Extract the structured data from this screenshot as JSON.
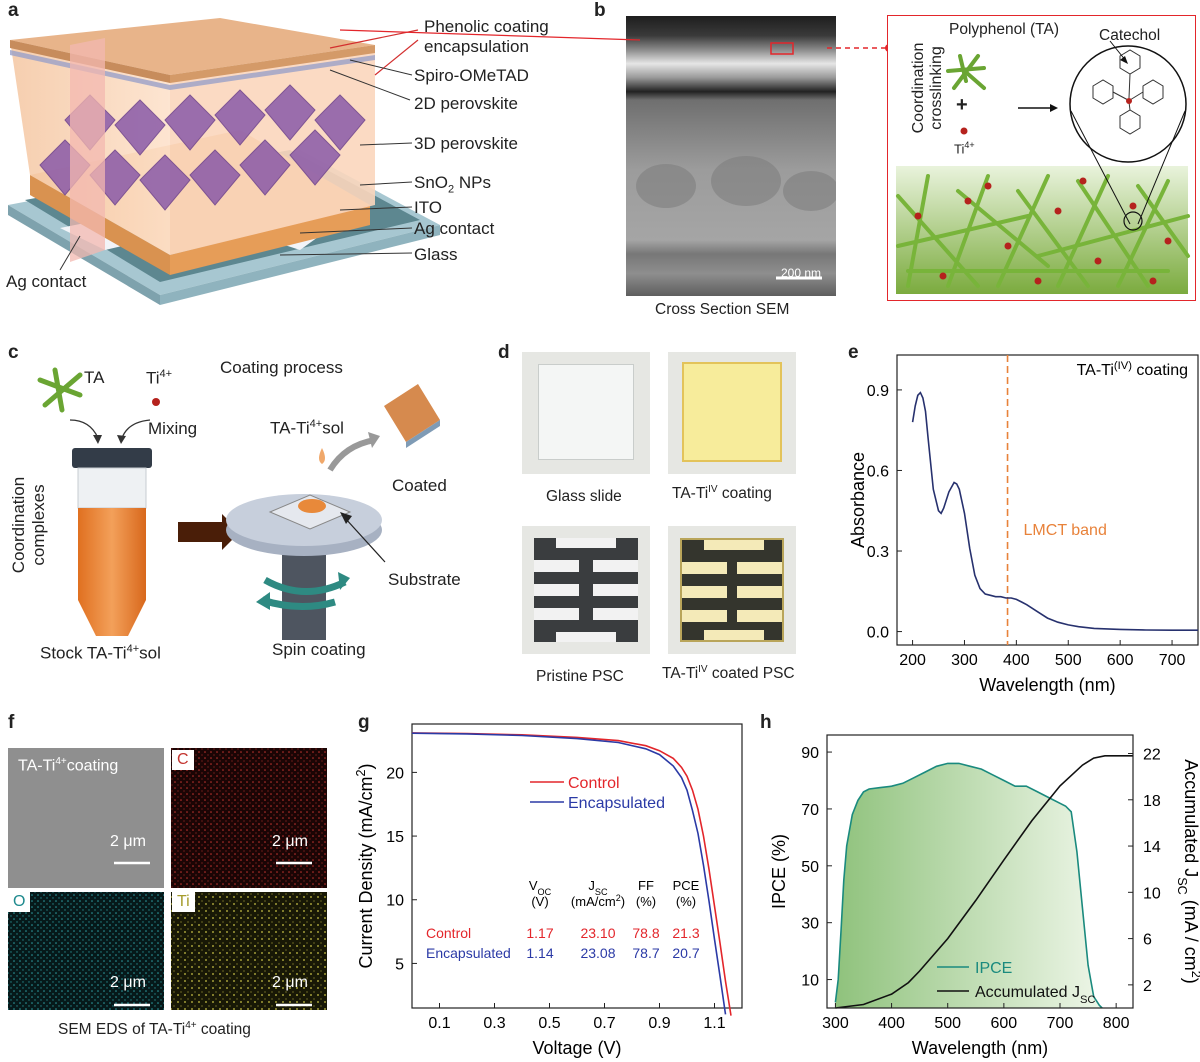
{
  "panels": {
    "a": {
      "label": "a",
      "layers": [
        "Phenolic coating",
        "encapsulation",
        "Spiro-OMeTAD",
        "2D perovskite",
        "3D perovskite",
        "SnO",
        "2",
        " NPs",
        "ITO",
        "Ag contact",
        "Glass"
      ],
      "left_contact": "Ag contact"
    },
    "b": {
      "label": "b",
      "sem_caption": "Cross Section SEM",
      "scale_bar": "200 nm",
      "crosslinking_label": [
        "Coordination",
        "crosslinking"
      ],
      "polyphenol": "Polyphenol (TA)",
      "catechol": "Catechol",
      "plus": "+",
      "ti": "Ti",
      "ti_sup": "4+"
    },
    "c": {
      "label": "c",
      "ta": "TA",
      "ti": "Ti",
      "ti_sup": "4+",
      "mixing": "Mixing",
      "coating_process": "Coating process",
      "sol_prefix": "TA-Ti",
      "sol_sup": "4+",
      "sol_suffix": "sol",
      "coated": "Coated",
      "substrate": "Substrate",
      "vertical": [
        "Coordination",
        "complexes"
      ],
      "stock_prefix": "Stock TA-Ti",
      "stock_sup": "4+",
      "stock_suffix": "sol",
      "spin": "Spin coating"
    },
    "d": {
      "label": "d",
      "glass": "Glass slide",
      "coating_prefix": "TA-Ti",
      "coating_sup": "IV",
      "coating_suffix": " coating",
      "pristine": "Pristine PSC",
      "coated_prefix": "TA-Ti",
      "coated_sup": "IV",
      "coated_suffix": " coated PSC"
    },
    "f": {
      "label": "f",
      "tile1_prefix": "TA-Ti",
      "tile1_sup": "4+",
      "tile1_suffix": "coating",
      "c": "C",
      "o": "O",
      "ti": "Ti",
      "scale": "2 μm",
      "caption_prefix": "SEM EDS of TA-Ti",
      "caption_sup": "4+",
      "caption_suffix": " coating"
    }
  },
  "chart_data": [
    {
      "panel": "e",
      "type": "line",
      "xlabel": "Wavelength (nm)",
      "ylabel": "Absorbance",
      "xlim": [
        170,
        750
      ],
      "ylim": [
        -0.05,
        1.03
      ],
      "xticks": [
        200,
        300,
        400,
        500,
        600,
        700
      ],
      "yticks": [
        0.0,
        0.3,
        0.6,
        0.9
      ],
      "ytick_labels": [
        "0.0",
        "0.3",
        "0.6",
        "0.9"
      ],
      "annotation_prefix": "TA-Ti",
      "annotation_sup": "(IV)",
      "annotation_suffix": " coating",
      "band_label": "LMCT band",
      "band_x": 383,
      "x": [
        200,
        205,
        210,
        215,
        220,
        225,
        230,
        240,
        250,
        255,
        260,
        270,
        280,
        285,
        290,
        300,
        310,
        320,
        330,
        340,
        350,
        360,
        370,
        380,
        390,
        400,
        410,
        420,
        440,
        460,
        480,
        500,
        520,
        550,
        600,
        650,
        700,
        750
      ],
      "y": [
        0.78,
        0.84,
        0.88,
        0.89,
        0.87,
        0.82,
        0.72,
        0.53,
        0.45,
        0.44,
        0.46,
        0.52,
        0.555,
        0.55,
        0.53,
        0.44,
        0.31,
        0.21,
        0.16,
        0.14,
        0.135,
        0.13,
        0.13,
        0.125,
        0.125,
        0.12,
        0.11,
        0.1,
        0.075,
        0.05,
        0.035,
        0.025,
        0.018,
        0.012,
        0.008,
        0.006,
        0.005,
        0.005
      ]
    },
    {
      "panel": "g",
      "type": "line",
      "xlabel": "Voltage (V)",
      "ylabel_prefix": "Current Density (mA/cm",
      "ylabel_sup": "2",
      "ylabel_suffix": ")",
      "xlim": [
        0,
        1.2
      ],
      "ylim": [
        1.5,
        23.8
      ],
      "xticks": [
        0.1,
        0.3,
        0.5,
        0.7,
        0.9,
        1.1
      ],
      "yticks": [
        5,
        10,
        15,
        20
      ],
      "series": [
        {
          "name": "Control",
          "color": "#e3262b",
          "x": [
            0,
            0.2,
            0.4,
            0.6,
            0.75,
            0.85,
            0.9,
            0.95,
            0.98,
            1.0,
            1.02,
            1.04,
            1.06,
            1.08,
            1.1,
            1.12,
            1.14,
            1.16
          ],
          "y": [
            23.1,
            23.05,
            22.95,
            22.75,
            22.5,
            22.1,
            21.7,
            21.1,
            20.4,
            19.7,
            18.6,
            17.1,
            15.0,
            12.4,
            9.5,
            6.6,
            3.6,
            0.9
          ]
        },
        {
          "name": "Encapsulated",
          "color": "#2b3aa6",
          "x": [
            0,
            0.2,
            0.4,
            0.6,
            0.75,
            0.85,
            0.9,
            0.95,
            0.98,
            1.0,
            1.02,
            1.04,
            1.06,
            1.08,
            1.1,
            1.12,
            1.14
          ],
          "y": [
            23.08,
            23.02,
            22.9,
            22.65,
            22.35,
            21.85,
            21.4,
            20.5,
            19.6,
            18.6,
            17.0,
            15.2,
            12.7,
            9.9,
            6.9,
            4.0,
            1.0
          ]
        }
      ],
      "table": {
        "headers": [
          [
            "V",
            "OC",
            "(V)"
          ],
          [
            "J",
            "SC",
            "(mA/cm",
            "2",
            ")"
          ],
          [
            "FF",
            "(%)"
          ],
          [
            "PCE",
            "(%)"
          ]
        ],
        "rows": [
          {
            "name": "Control",
            "voc": "1.17",
            "jsc": "23.10",
            "ff": "78.8",
            "pce": "21.3"
          },
          {
            "name": "Encapsulated",
            "voc": "1.14",
            "jsc": "23.08",
            "ff": "78.7",
            "pce": "20.7"
          }
        ]
      }
    },
    {
      "panel": "h",
      "type": "area",
      "xlabel": "Wavelength (nm)",
      "ylabel_left": "IPCE (%)",
      "ylabel_right_prefix": "Accumulated J",
      "ylabel_right_sub": "SC",
      "ylabel_right_suffix_a": " (mA / cm",
      "ylabel_right_sup": "2",
      "ylabel_right_suffix_b": ")",
      "xlim": [
        285,
        830
      ],
      "ylim_left": [
        0,
        96
      ],
      "ylim_right": [
        0,
        23.6
      ],
      "xticks": [
        300,
        400,
        500,
        600,
        700,
        800
      ],
      "yticks_left": [
        10,
        30,
        50,
        70,
        90
      ],
      "yticks_right": [
        2,
        6,
        10,
        14,
        18,
        22
      ],
      "series": [
        {
          "name": "IPCE",
          "color": "#1a8a7e",
          "x": [
            300,
            305,
            310,
            315,
            320,
            330,
            340,
            350,
            360,
            380,
            400,
            420,
            440,
            460,
            480,
            500,
            520,
            540,
            560,
            580,
            600,
            620,
            640,
            660,
            680,
            700,
            710,
            720,
            730,
            740,
            750,
            760,
            770,
            775
          ],
          "y": [
            2,
            10,
            27,
            45,
            57,
            68,
            73,
            76,
            77,
            77.5,
            78,
            79,
            81,
            83,
            85,
            86,
            86,
            85,
            84,
            82,
            80,
            78,
            78,
            76,
            74,
            72,
            71,
            69,
            55,
            35,
            15,
            4,
            1,
            0
          ]
        },
        {
          "name": "Accumulated J",
          "name_sub": "SC",
          "color": "#111111",
          "x": [
            300,
            350,
            400,
            430,
            450,
            500,
            550,
            600,
            650,
            700,
            740,
            760,
            780,
            800,
            830
          ],
          "y": [
            0,
            0.3,
            1.2,
            2.2,
            3.2,
            6.0,
            9.3,
            12.8,
            16.2,
            19.2,
            21.0,
            21.6,
            21.8,
            21.8,
            21.8
          ]
        }
      ]
    }
  ]
}
